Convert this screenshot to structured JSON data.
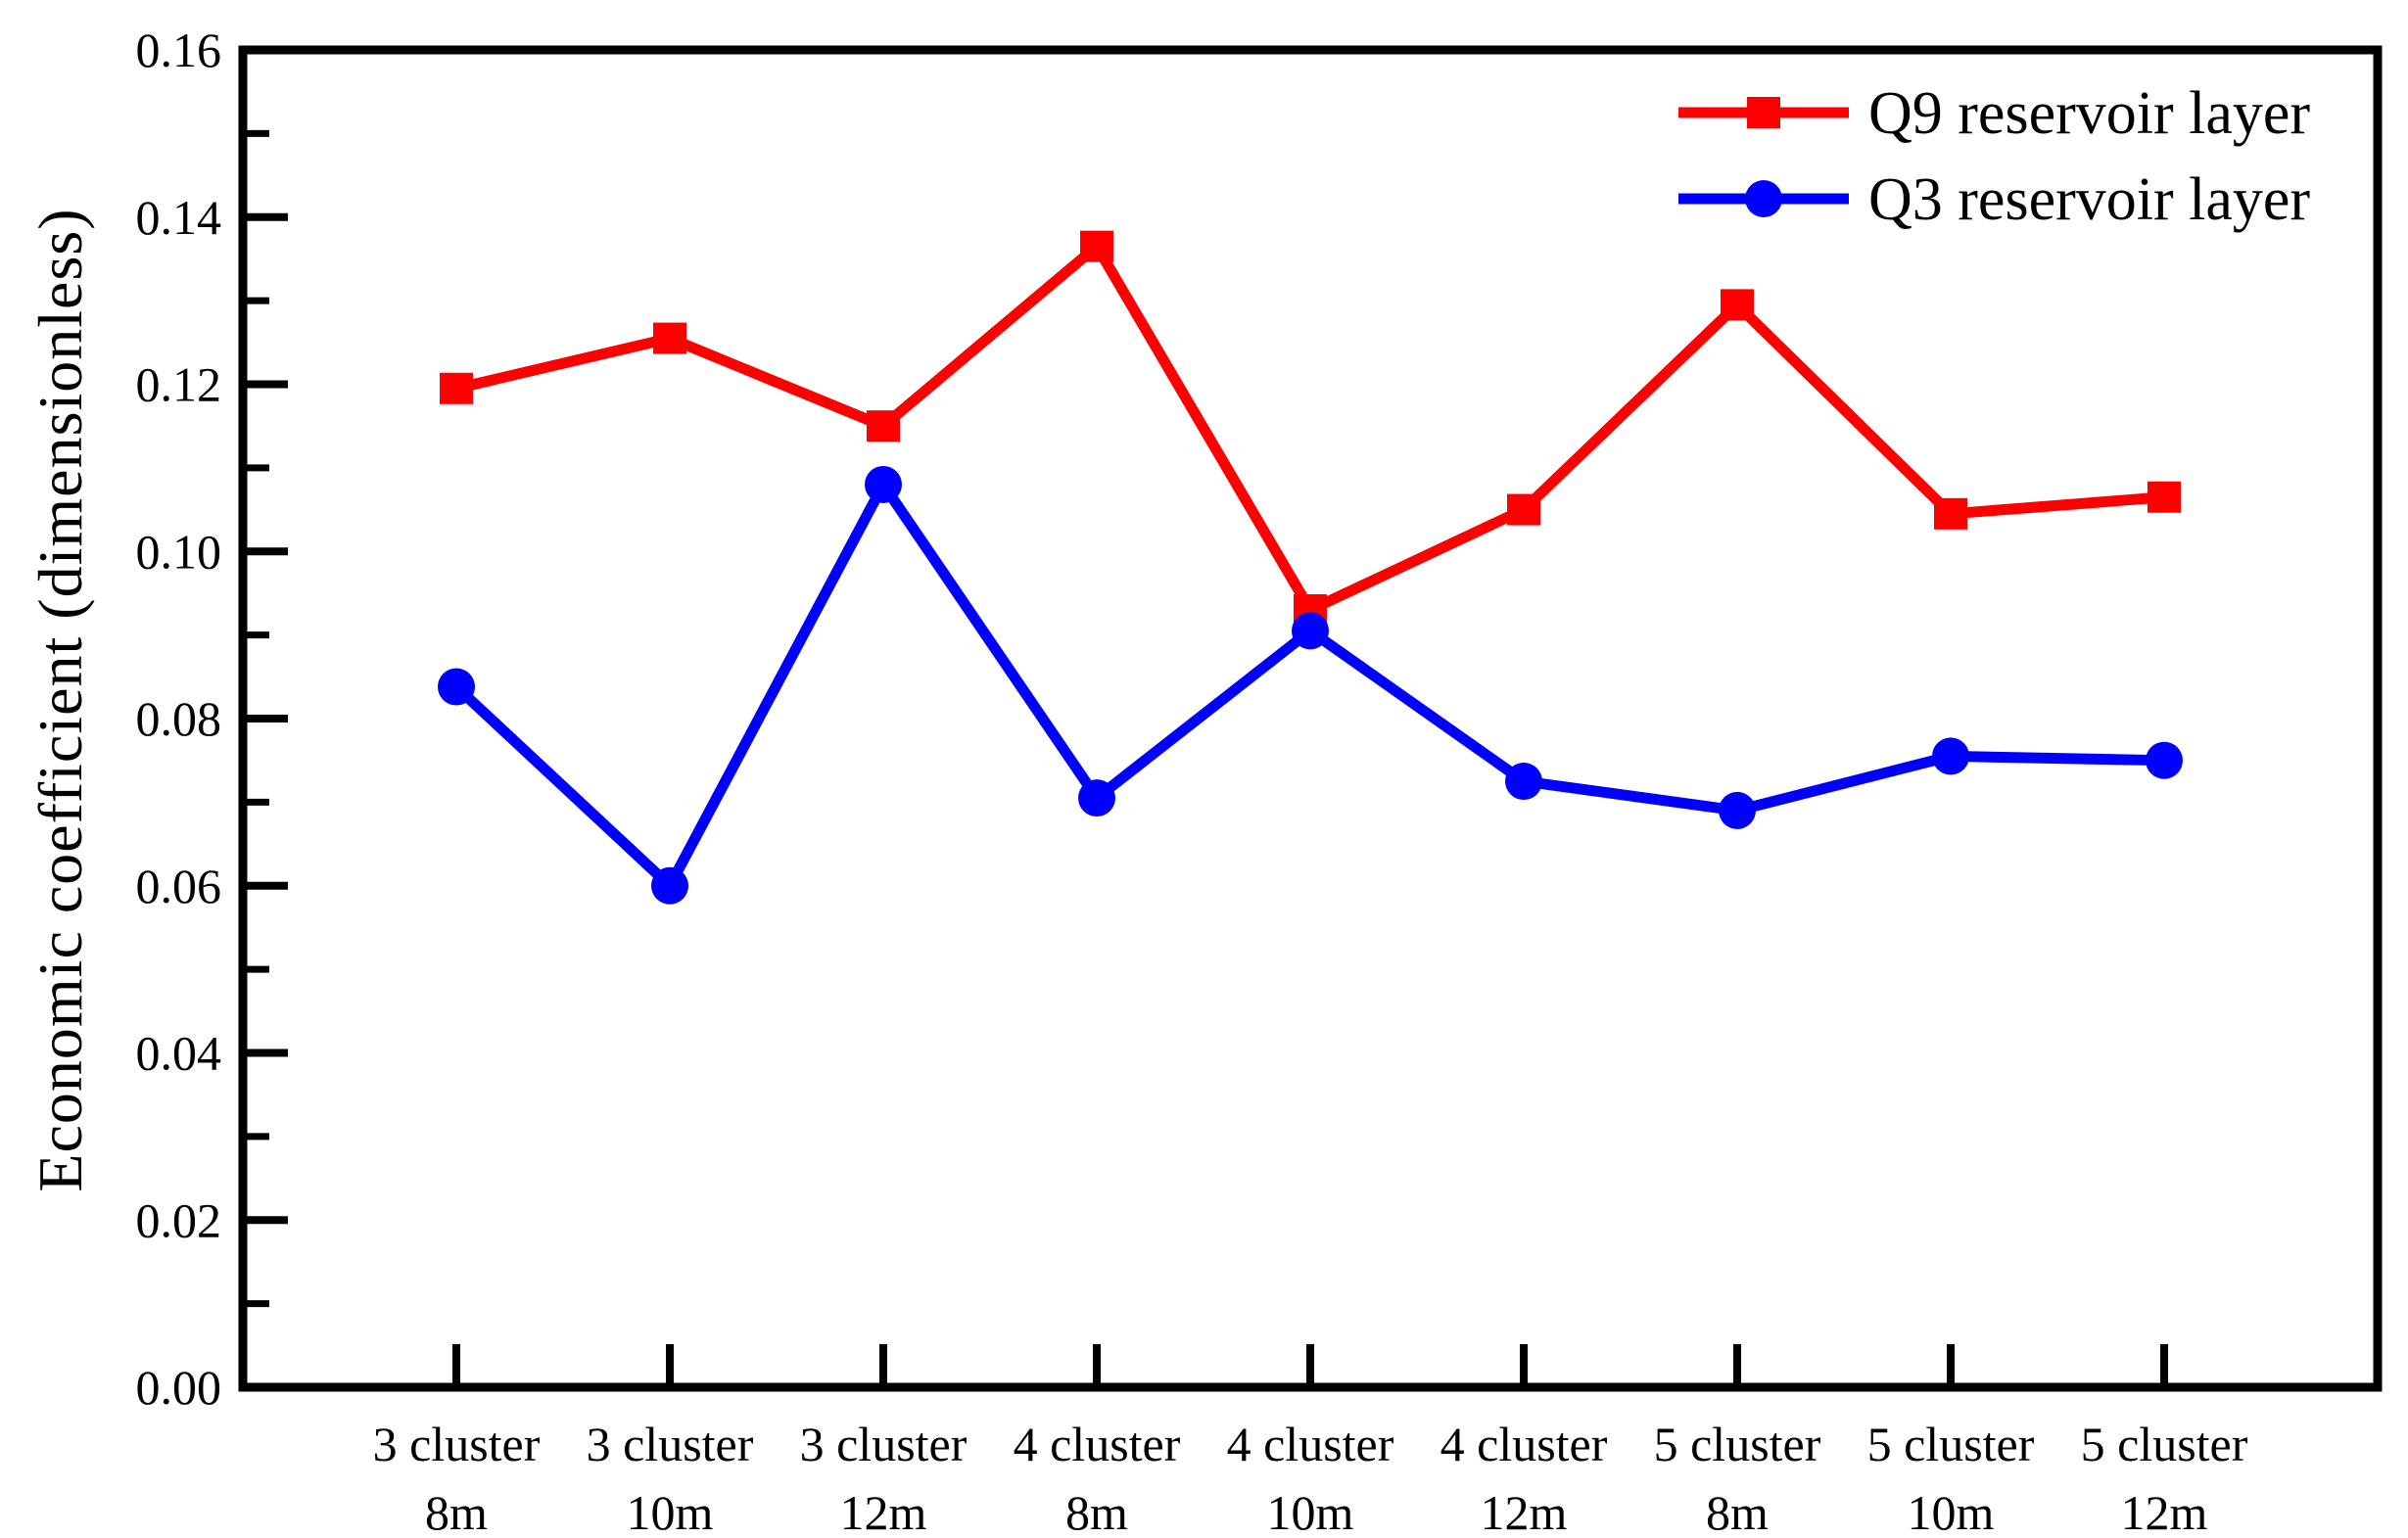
{
  "chart_data": {
    "type": "line",
    "title": "",
    "xlabel": "",
    "ylabel": "Economic coefficient (dimensionless)",
    "ylim": [
      0,
      0.16
    ],
    "y_major_step": 0.02,
    "y_minor_step": 0.01,
    "y_tick_labels": [
      "0.00",
      "0.02",
      "0.04",
      "0.06",
      "0.08",
      "0.10",
      "0.12",
      "0.14",
      "0.16"
    ],
    "grid": false,
    "legend_position": "top-right-inside",
    "categories_line1": [
      "3 cluster",
      "3 cluster",
      "3 cluster",
      "4 cluster",
      "4 cluster",
      "4 cluster",
      "5 cluster",
      "5 cluster",
      "5 cluster"
    ],
    "categories_line2": [
      "8m",
      "10m",
      "12m",
      "8m",
      "10m",
      "12m",
      "8m",
      "10m",
      "12m"
    ],
    "series": [
      {
        "name": "Q9 reservoir layer",
        "color": "#ff0000",
        "marker": "square",
        "values": [
          0.1195,
          0.1255,
          0.115,
          0.1365,
          0.093,
          0.105,
          0.1295,
          0.1045,
          0.1065
        ]
      },
      {
        "name": "Q3 reservoir layer",
        "color": "#0000ff",
        "marker": "circle",
        "values": [
          0.0838,
          0.06,
          0.108,
          0.0705,
          0.0905,
          0.0725,
          0.069,
          0.0755,
          0.075
        ]
      }
    ],
    "frame_color": "#000000"
  }
}
